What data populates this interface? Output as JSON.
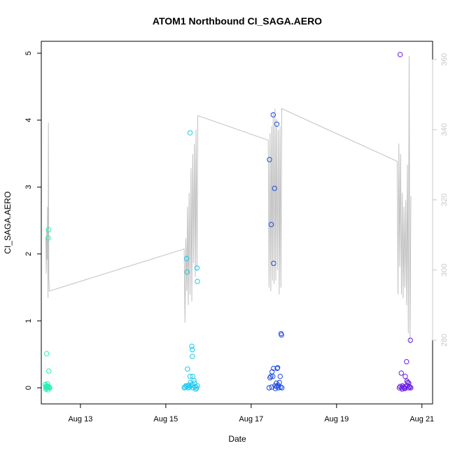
{
  "chart_data": {
    "type": "scatter",
    "title": "ATOM1 Northbound CI_SAGA.AERO",
    "xlabel": "Date",
    "ylabel": "CI_SAGA.AERO",
    "x_ticks": [
      "Aug 13",
      "Aug 15",
      "Aug 17",
      "Aug 19",
      "Aug 21"
    ],
    "xlim": [
      "Aug 12 02:00",
      "Aug 21 06:00"
    ],
    "ylim": [
      0,
      5
    ],
    "y_ticks": [
      "0",
      "1",
      "2",
      "3",
      "4",
      "5"
    ],
    "y2_ticks": [
      "280",
      "300",
      "320",
      "340",
      "360"
    ],
    "y2lim": [
      264,
      364
    ],
    "grid": false,
    "colors": {
      "axis": "#000000",
      "secondary_axis": "#c8c8c8",
      "secondary_line": "#c0c0c0",
      "point_palette": [
        "#22f0b3",
        "#18c8f0",
        "#1e4ae0",
        "#6a1ee8"
      ]
    },
    "series": [
      {
        "points": [
          [
            "Aug 12 05:02",
            0.51
          ],
          [
            "Aug 12 05:50",
            2.24
          ],
          [
            "Aug 12 06:00",
            2.36
          ],
          [
            "Aug 12 06:14",
            0.25
          ],
          [
            "Aug 12 04:19",
            0.05
          ],
          [
            "Aug 12 04:34",
            0.02
          ],
          [
            "Aug 12 04:48",
            0.0
          ],
          [
            "Aug 12 05:02",
            0.03
          ],
          [
            "Aug 12 05:17",
            0.01
          ],
          [
            "Aug 12 05:31",
            0.06
          ],
          [
            "Aug 12 05:46",
            0.0
          ],
          [
            "Aug 12 06:00",
            0.02
          ],
          [
            "Aug 12 06:29",
            0.01
          ],
          [
            "Aug 12 06:43",
            0.0
          ],
          [
            "Aug 12 04:34",
            -0.02
          ],
          [
            "Aug 12 05:46",
            -0.03
          ]
        ]
      },
      {
        "points": [
          [
            "Aug 15 11:42",
            1.93
          ],
          [
            "Aug 15 11:57",
            1.73
          ],
          [
            "Aug 15 13:37",
            3.81
          ],
          [
            "Aug 15 17:31",
            1.79
          ],
          [
            "Aug 15 17:46",
            1.59
          ],
          [
            "Aug 15 14:38",
            0.62
          ],
          [
            "Aug 15 14:53",
            0.57
          ],
          [
            "Aug 15 14:53",
            0.47
          ],
          [
            "Aug 15 12:12",
            0.28
          ],
          [
            "Aug 15 13:37",
            0.17
          ],
          [
            "Aug 15 15:07",
            0.17
          ],
          [
            "Aug 15 15:50",
            0.11
          ],
          [
            "Aug 15 16:05",
            0.07
          ],
          [
            "Aug 15 13:52",
            0.08
          ],
          [
            "Aug 15 14:38",
            0.05
          ],
          [
            "Aug 15 10:19",
            0.0
          ],
          [
            "Aug 15 10:48",
            0.01
          ],
          [
            "Aug 15 11:17",
            0.03
          ],
          [
            "Aug 15 11:46",
            0.02
          ],
          [
            "Aug 15 12:24",
            0.0
          ],
          [
            "Aug 15 12:53",
            0.04
          ],
          [
            "Aug 15 13:22",
            0.01
          ],
          [
            "Aug 15 14:10",
            0.03
          ],
          [
            "Aug 15 15:22",
            0.0
          ],
          [
            "Aug 15 16:34",
            0.02
          ],
          [
            "Aug 15 17:17",
            0.0
          ],
          [
            "Aug 15 17:46",
            0.03
          ],
          [
            "Aug 15 16:48",
            -0.02
          ]
        ]
      },
      {
        "points": [
          [
            "Aug 17 10:19",
            3.41
          ],
          [
            "Aug 17 11:17",
            2.44
          ],
          [
            "Aug 17 12:24",
            4.08
          ],
          [
            "Aug 17 13:08",
            2.98
          ],
          [
            "Aug 17 14:24",
            3.94
          ],
          [
            "Aug 17 12:38",
            1.86
          ],
          [
            "Aug 17 16:48",
            0.81
          ],
          [
            "Aug 17 17:02",
            0.79
          ],
          [
            "Aug 17 12:38",
            0.29
          ],
          [
            "Aug 17 14:38",
            0.29
          ],
          [
            "Aug 17 14:53",
            0.3
          ],
          [
            "Aug 17 11:46",
            0.24
          ],
          [
            "Aug 17 11:02",
            0.17
          ],
          [
            "Aug 17 10:34",
            0.15
          ],
          [
            "Aug 17 12:10",
            0.17
          ],
          [
            "Aug 17 16:19",
            0.17
          ],
          [
            "Aug 17 14:10",
            0.07
          ],
          [
            "Aug 17 15:50",
            0.08
          ],
          [
            "Aug 17 10:05",
            0.0
          ],
          [
            "Aug 17 11:31",
            0.01
          ],
          [
            "Aug 17 13:22",
            0.03
          ],
          [
            "Aug 17 14:24",
            0.02
          ],
          [
            "Aug 17 15:22",
            0.0
          ],
          [
            "Aug 17 16:34",
            0.01
          ],
          [
            "Aug 17 17:17",
            0.0
          ],
          [
            "Aug 17 15:07",
            0.04
          ],
          [
            "Aug 17 13:37",
            -0.01
          ]
        ]
      },
      {
        "points": [
          [
            "Aug 20 11:46",
            4.98
          ],
          [
            "Aug 20 12:24",
            0.22
          ],
          [
            "Aug 20 17:31",
            0.71
          ],
          [
            "Aug 20 15:22",
            0.39
          ],
          [
            "Aug 20 14:38",
            0.17
          ],
          [
            "Aug 20 15:36",
            0.1
          ],
          [
            "Aug 20 16:05",
            0.08
          ],
          [
            "Aug 20 16:34",
            0.07
          ],
          [
            "Aug 20 11:17",
            0.0
          ],
          [
            "Aug 20 11:46",
            0.02
          ],
          [
            "Aug 20 12:38",
            0.0
          ],
          [
            "Aug 20 13:08",
            0.03
          ],
          [
            "Aug 20 13:37",
            0.01
          ],
          [
            "Aug 20 14:10",
            0.0
          ],
          [
            "Aug 20 14:53",
            0.02
          ],
          [
            "Aug 20 15:50",
            0.03
          ],
          [
            "Aug 20 16:19",
            0.0
          ],
          [
            "Aug 20 16:48",
            0.02
          ],
          [
            "Aug 20 17:17",
            0.01
          ],
          [
            "Aug 20 17:46",
            0.0
          ],
          [
            "Aug 20 12:53",
            -0.02
          ],
          [
            "Aug 20 14:24",
            -0.01
          ]
        ]
      }
    ],
    "secondary_line": {
      "axis": "right",
      "points": [
        [
          "Aug 12 04:34",
          309
        ],
        [
          "Aug 12 04:48",
          299
        ],
        [
          "Aug 12 05:02",
          312
        ],
        [
          "Aug 12 05:17",
          303
        ],
        [
          "Aug 12 05:31",
          318
        ],
        [
          "Aug 12 05:46",
          292
        ],
        [
          "Aug 12 06:00",
          342
        ],
        [
          "Aug 12 06:14",
          298
        ],
        [
          "Aug 12 06:29",
          294
        ],
        [
          "Aug 15 10:19",
          306
        ],
        [
          "Aug 15 10:48",
          285
        ],
        [
          "Aug 15 11:17",
          309
        ],
        [
          "Aug 15 11:46",
          294
        ],
        [
          "Aug 15 12:10",
          318
        ],
        [
          "Aug 15 12:38",
          290
        ],
        [
          "Aug 15 13:08",
          322
        ],
        [
          "Aug 15 13:37",
          293
        ],
        [
          "Aug 15 14:10",
          329
        ],
        [
          "Aug 15 14:38",
          291
        ],
        [
          "Aug 15 15:07",
          333
        ],
        [
          "Aug 15 15:36",
          302
        ],
        [
          "Aug 15 16:05",
          336
        ],
        [
          "Aug 15 16:34",
          298
        ],
        [
          "Aug 15 17:02",
          340
        ],
        [
          "Aug 15 17:31",
          300
        ],
        [
          "Aug 15 18:00",
          344
        ],
        [
          "Aug 17 09:36",
          337
        ],
        [
          "Aug 17 10:05",
          295
        ],
        [
          "Aug 17 10:34",
          339
        ],
        [
          "Aug 17 11:02",
          294
        ],
        [
          "Aug 17 11:31",
          341
        ],
        [
          "Aug 17 12:00",
          297
        ],
        [
          "Aug 17 12:24",
          345
        ],
        [
          "Aug 17 12:53",
          296
        ],
        [
          "Aug 17 13:22",
          346
        ],
        [
          "Aug 17 13:51",
          297
        ],
        [
          "Aug 17 14:20",
          343
        ],
        [
          "Aug 17 14:48",
          300
        ],
        [
          "Aug 17 15:17",
          340
        ],
        [
          "Aug 17 15:46",
          293
        ],
        [
          "Aug 17 16:14",
          341
        ],
        [
          "Aug 17 16:43",
          295
        ],
        [
          "Aug 17 17:12",
          346
        ],
        [
          "Aug 20 10:05",
          331
        ],
        [
          "Aug 20 10:34",
          293
        ],
        [
          "Aug 20 11:02",
          336
        ],
        [
          "Aug 20 11:31",
          301
        ],
        [
          "Aug 20 12:00",
          333
        ],
        [
          "Aug 20 12:29",
          293
        ],
        [
          "Aug 20 12:58",
          322
        ],
        [
          "Aug 20 13:27",
          292
        ],
        [
          "Aug 20 13:56",
          318
        ],
        [
          "Aug 20 14:25",
          295
        ],
        [
          "Aug 20 14:54",
          320
        ],
        [
          "Aug 20 15:22",
          290
        ],
        [
          "Aug 20 15:51",
          330
        ],
        [
          "Aug 20 16:20",
          282
        ],
        [
          "Aug 20 16:49",
          361
        ],
        [
          "Aug 20 17:18",
          279
        ],
        [
          "Aug 20 17:47",
          321
        ]
      ]
    }
  }
}
